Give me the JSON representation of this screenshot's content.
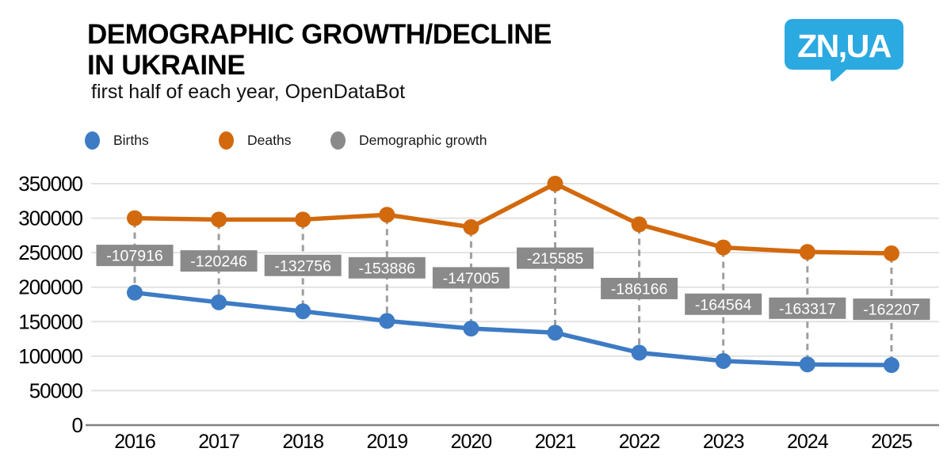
{
  "header": {
    "title_line1": "DEMOGRAPHIC GROWTH/DECLINE",
    "title_line2": "IN UKRAINE",
    "subtitle": "first half of each year, OpenDataBot",
    "logo_text": "ZN,UA"
  },
  "colors": {
    "births": "#3d7bc4",
    "deaths": "#d2690c",
    "growth": "#8a8a8a",
    "logo_bg": "#2ba9e1",
    "grid": "#e2e2e2",
    "axis": "#808080",
    "dash": "#9e9e9e",
    "box_text": "#ffffff",
    "text": "#000000"
  },
  "legend": {
    "items": [
      {
        "label": "Births",
        "color_key": "births"
      },
      {
        "label": "Deaths",
        "color_key": "deaths"
      },
      {
        "label": "Demographic growth",
        "color_key": "growth"
      }
    ]
  },
  "chart_data": {
    "type": "line",
    "x": [
      "2016",
      "2017",
      "2018",
      "2019",
      "2020",
      "2021",
      "2022",
      "2023",
      "2024",
      "2025"
    ],
    "series": [
      {
        "name": "Births",
        "color_key": "births",
        "values": [
          192000,
          178000,
          165000,
          151000,
          140000,
          134000,
          105000,
          93000,
          88000,
          87000
        ]
      },
      {
        "name": "Deaths",
        "color_key": "deaths",
        "values": [
          300000,
          298000,
          298000,
          305000,
          287000,
          350000,
          291000,
          257500,
          251000,
          249000
        ]
      },
      {
        "name": "Demographic growth",
        "color_key": "growth",
        "shown_as": "labels",
        "values": [
          -107916,
          -120246,
          -132756,
          -153886,
          -147005,
          -215585,
          -186166,
          -164564,
          -163317,
          -162207
        ]
      }
    ],
    "growth_labels": [
      "-107916",
      "-120246",
      "-132756",
      "-153886",
      "-147005",
      "-215585",
      "-186166",
      "-164564",
      "-163317",
      "-162207"
    ],
    "yticks": [
      "350000",
      "300000",
      "250000",
      "200000",
      "150000",
      "100000",
      "50000",
      "0"
    ],
    "ylim": [
      0,
      350000
    ],
    "grid": true,
    "legend_position": "top"
  }
}
